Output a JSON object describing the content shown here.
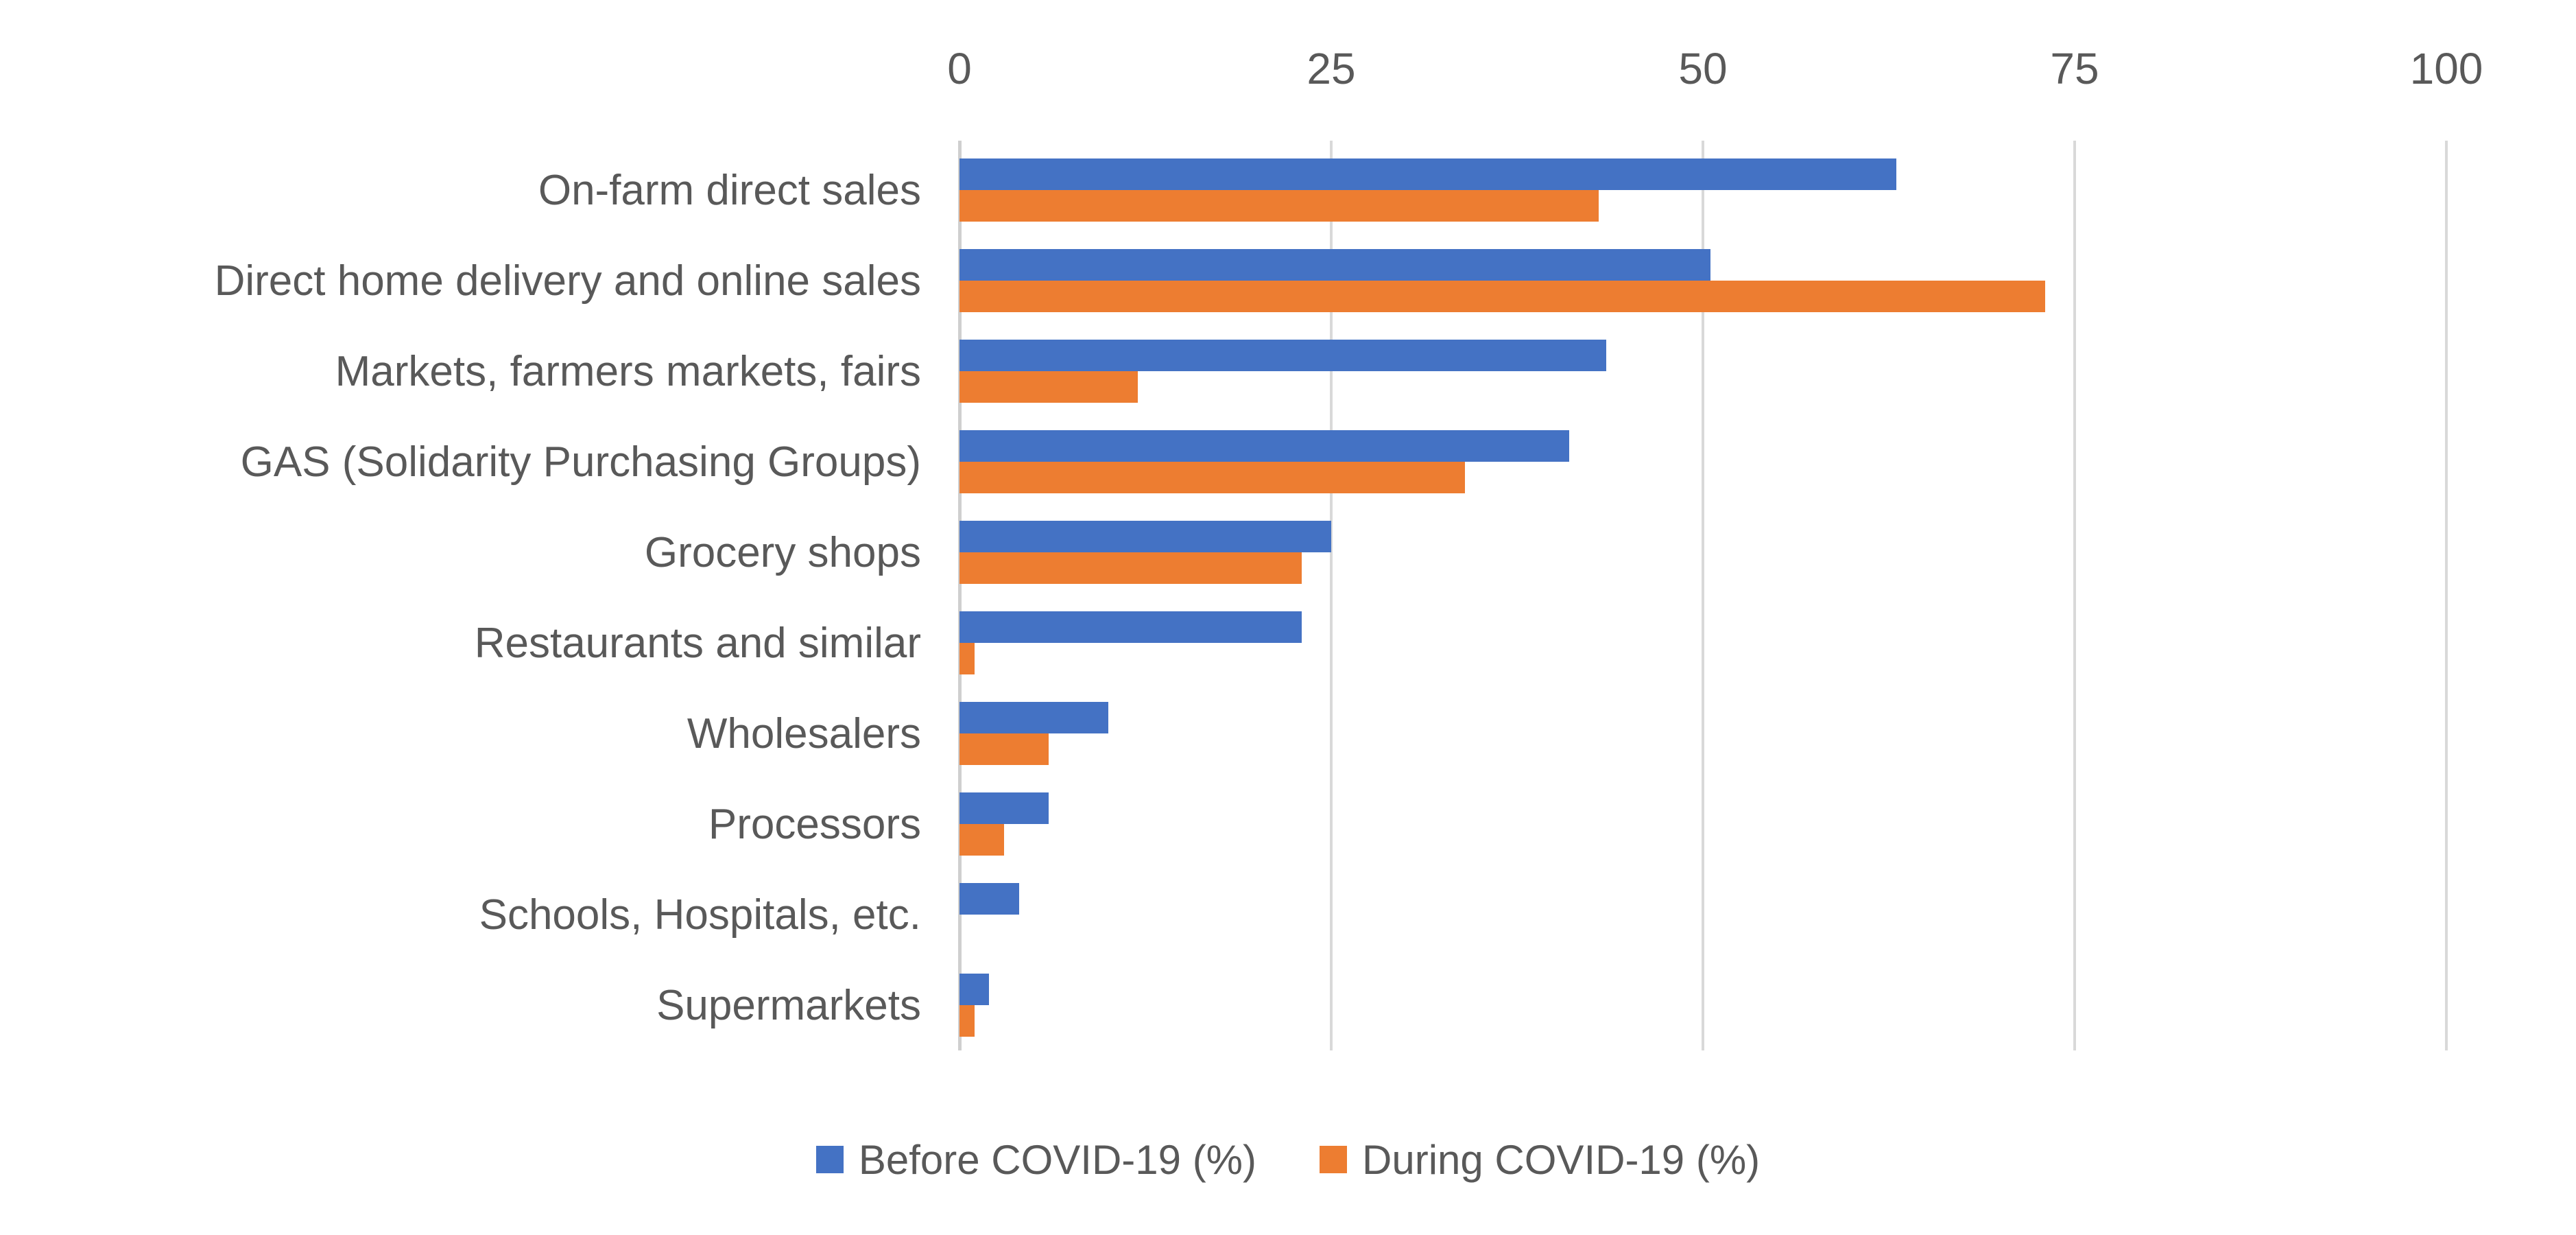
{
  "chart_data": {
    "type": "bar",
    "orientation": "horizontal",
    "title": "",
    "xlabel": "",
    "ylabel": "",
    "xlim": [
      0,
      100
    ],
    "x_ticks": [
      0,
      25,
      50,
      75,
      100
    ],
    "grid": "vertical",
    "legend_position": "bottom-center",
    "categories": [
      "On-farm direct sales",
      "Direct home delivery and online sales",
      "Markets, farmers markets, fairs",
      "GAS (Solidarity Purchasing Groups)",
      "Grocery shops",
      "Restaurants and similar",
      "Wholesalers",
      "Processors",
      "Schools, Hospitals, etc.",
      "Supermarkets"
    ],
    "series": [
      {
        "name": "Before COVID-19 (%)",
        "color": "#4472C4",
        "values": [
          63,
          50.5,
          43.5,
          41,
          25,
          23,
          10,
          6,
          4,
          2
        ]
      },
      {
        "name": "During COVID-19 (%)",
        "color": "#ED7D31",
        "values": [
          43,
          73,
          12,
          34,
          23,
          1,
          6,
          3,
          0,
          1
        ]
      }
    ]
  },
  "colors": {
    "series_before": "#4472C4",
    "series_during": "#ED7D31",
    "gridline": "#D9D9D9",
    "axis_line": "#CFCFCF",
    "text": "#595959",
    "background": "#FFFFFF"
  }
}
